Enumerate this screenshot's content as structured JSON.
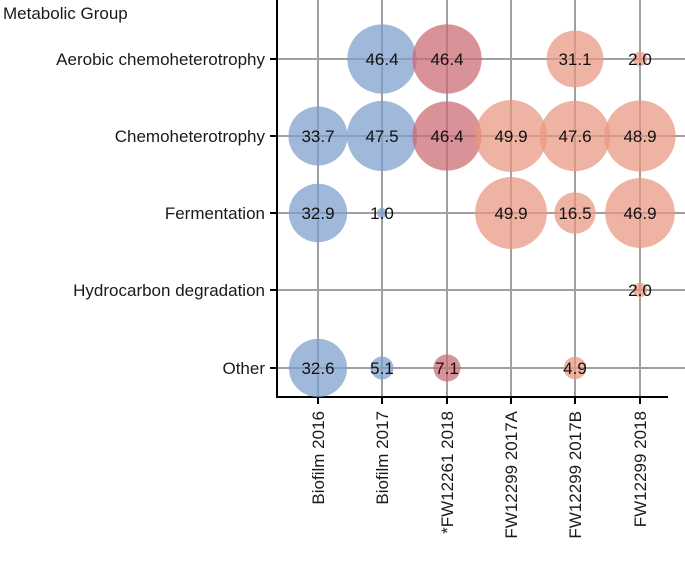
{
  "chart_data": {
    "type": "bubble",
    "title": "Metabolic Group",
    "categories_y": [
      "Aerobic chemoheterotrophy",
      "Chemoheterotrophy",
      "Fermentation",
      "Hydrocarbon degradation",
      "Other"
    ],
    "categories_x": [
      "Biofilm 2016",
      "Biofilm 2017",
      "*FW12261 2018",
      "FW12299 2017A",
      "FW12299 2017B",
      "FW12299 2018"
    ],
    "groups": [
      "biofilm",
      "biofilm",
      "mixed",
      "water",
      "water",
      "water"
    ],
    "colors": {
      "biofilm": "#7b9dca",
      "water": "#e9967f",
      "mixed": "#c96870"
    },
    "values": [
      [
        null,
        46.4,
        46.4,
        null,
        31.1,
        2.0
      ],
      [
        33.7,
        47.5,
        46.4,
        49.9,
        47.6,
        48.9
      ],
      [
        32.9,
        1.0,
        null,
        49.9,
        16.5,
        46.9
      ],
      [
        null,
        null,
        null,
        null,
        null,
        2.0
      ],
      [
        32.6,
        5.1,
        7.1,
        null,
        4.9,
        null
      ]
    ],
    "value_labels": [
      [
        null,
        "46.4",
        "46.4",
        null,
        "31.1",
        "2.0"
      ],
      [
        "33.7",
        "47.5",
        "46.4",
        "49.9",
        "47.6",
        "48.9"
      ],
      [
        "32.9",
        "1.0",
        null,
        "49.9",
        "16.5",
        "46.9"
      ],
      [
        null,
        null,
        null,
        null,
        null,
        "2.0"
      ],
      [
        "32.6",
        "5.1",
        "7.1",
        null,
        "4.9",
        null
      ]
    ],
    "size_max_value": 50,
    "grid": true
  }
}
